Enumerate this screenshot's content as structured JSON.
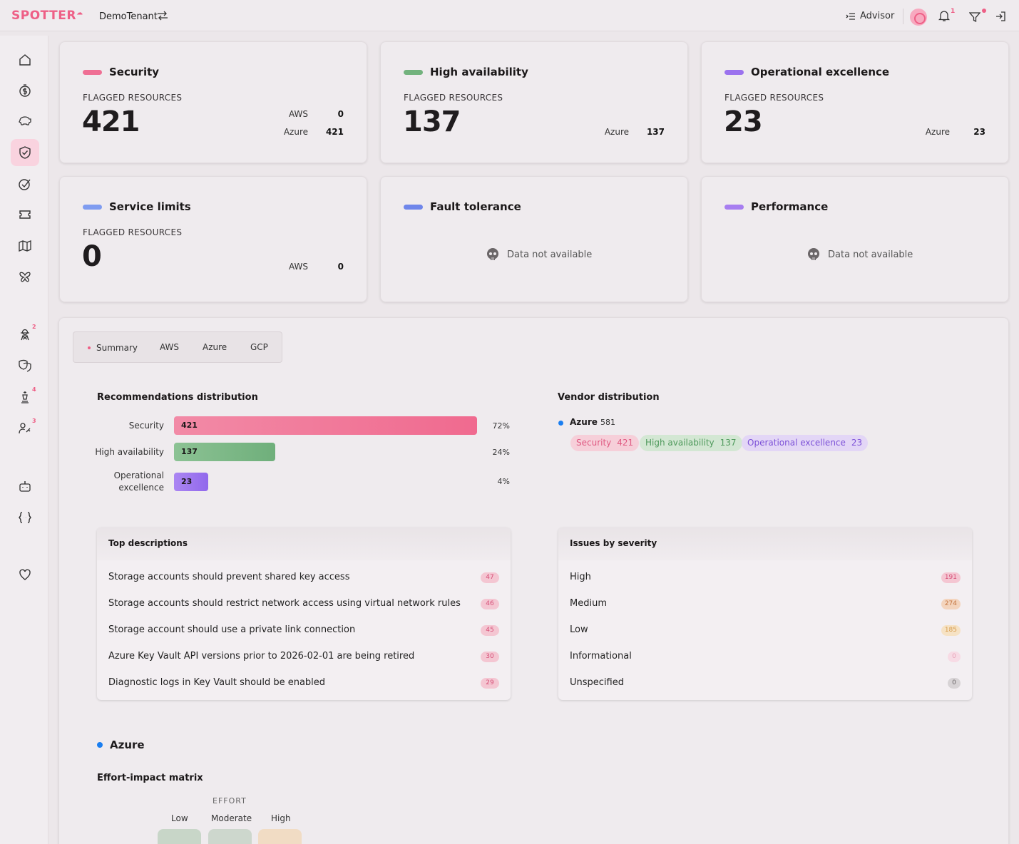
{
  "topbar": {
    "logo": "SPOTTER",
    "tenant": "DemoTenant",
    "advisor_label": "Advisor",
    "notification_count": "1"
  },
  "sidebar": {
    "items": [
      {
        "icon": "home-icon"
      },
      {
        "icon": "money-icon"
      },
      {
        "icon": "piggy-bank-icon"
      },
      {
        "icon": "shield-check-icon",
        "active": true
      },
      {
        "icon": "target-check-icon"
      },
      {
        "icon": "ticket-icon"
      },
      {
        "icon": "map-icon"
      },
      {
        "icon": "butterfly-icon"
      },
      {
        "icon": "agent-icon",
        "badge": "2"
      },
      {
        "icon": "masks-icon"
      },
      {
        "icon": "chess-icon",
        "badge": "4"
      },
      {
        "icon": "user-key-icon",
        "badge": "3"
      },
      {
        "icon": "robot-icon"
      },
      {
        "icon": "code-braces-icon"
      },
      {
        "icon": "heart-icon"
      }
    ]
  },
  "cards": [
    {
      "title": "Security",
      "color": "#ef6f94",
      "flag_label": "FLAGGED RESOURCES",
      "total": "421",
      "vendors": [
        {
          "name": "AWS",
          "value": "0"
        },
        {
          "name": "Azure",
          "value": "421"
        }
      ]
    },
    {
      "title": "High availability",
      "color": "#72b27d",
      "flag_label": "FLAGGED RESOURCES",
      "total": "137",
      "vendors": [
        {
          "name": "Azure",
          "value": "137"
        }
      ]
    },
    {
      "title": "Operational excellence",
      "color": "#9b72ee",
      "flag_label": "FLAGGED RESOURCES",
      "total": "23",
      "vendors": [
        {
          "name": "Azure",
          "value": "23"
        }
      ]
    },
    {
      "title": "Service limits",
      "color": "#7f9cf0",
      "flag_label": "FLAGGED RESOURCES",
      "total": "0",
      "vendors": [
        {
          "name": "AWS",
          "value": "0"
        }
      ]
    },
    {
      "title": "Fault tolerance",
      "color": "#6f86ea",
      "no_data": "Data not available"
    },
    {
      "title": "Performance",
      "color": "#a77ef0",
      "no_data": "Data not available"
    }
  ],
  "tabs": [
    "Summary",
    "AWS",
    "Azure",
    "GCP"
  ],
  "recommendations": {
    "title": "Recommendations distribution",
    "rows": [
      {
        "label": "Security",
        "value": 421,
        "pct": "72%",
        "fraction": 0.72,
        "color": "#f07395"
      },
      {
        "label": "High availability",
        "value": 137,
        "pct": "24%",
        "fraction": 0.24,
        "color": "#77b582"
      },
      {
        "label": "Operational excellence",
        "value": 23,
        "pct": "4%",
        "fraction": 0.04,
        "color": "#9a73ee"
      }
    ]
  },
  "vendor_distribution": {
    "title": "Vendor distribution",
    "vendor": "Azure",
    "total": "581",
    "chips": [
      {
        "label": "Security",
        "value": "421",
        "bg": "#f6cfd9",
        "fg": "#e05a82"
      },
      {
        "label": "High availability",
        "value": "137",
        "bg": "#d3e7d3",
        "fg": "#4f9a5c"
      },
      {
        "label": "Operational excellence",
        "value": "23",
        "bg": "#e3d6f6",
        "fg": "#7d52d8"
      }
    ]
  },
  "top_descriptions": {
    "title": "Top descriptions",
    "rows": [
      {
        "text": "Storage accounts should prevent shared key access",
        "count": "47"
      },
      {
        "text": "Storage accounts should restrict network access using virtual network rules",
        "count": "46"
      },
      {
        "text": "Storage account should use a private link connection",
        "count": "45"
      },
      {
        "text": "Azure Key Vault API versions prior to 2026-02-01 are being retired",
        "count": "30"
      },
      {
        "text": "Diagnostic logs in Key Vault should be enabled",
        "count": "29"
      }
    ]
  },
  "issues_by_severity": {
    "title": "Issues by severity",
    "rows": [
      {
        "text": "High",
        "count": "191",
        "bg": "#f4c6d2",
        "fg": "#d65078"
      },
      {
        "text": "Medium",
        "count": "274",
        "bg": "#f3d4bd",
        "fg": "#c47540"
      },
      {
        "text": "Low",
        "count": "185",
        "bg": "#f6e2c4",
        "fg": "#d69a4a"
      },
      {
        "text": "Informational",
        "count": "0",
        "bg": "#f7dbe5",
        "fg": "#e8a4b9"
      },
      {
        "text": "Unspecified",
        "count": "0",
        "bg": "#d7d3d5",
        "fg": "#6b6668"
      }
    ]
  },
  "azure_section": {
    "title": "Azure",
    "matrix_title": "Effort-impact matrix",
    "effort_label": "EFFORT",
    "effort_levels": [
      "Low",
      "Moderate",
      "High"
    ]
  }
}
